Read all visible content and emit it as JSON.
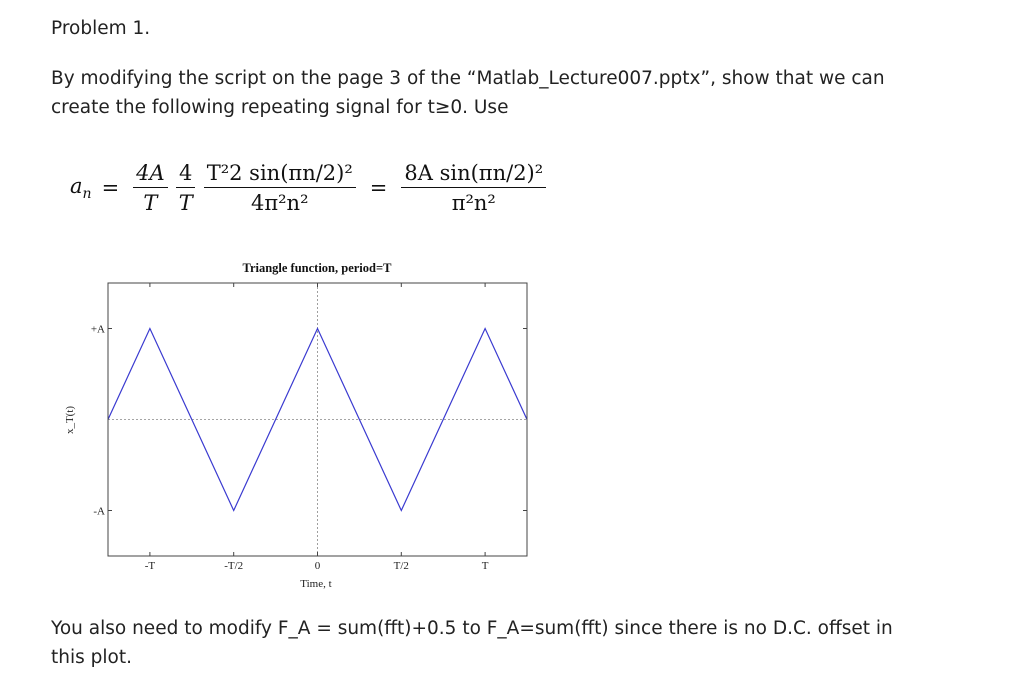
{
  "heading": "Problem 1.",
  "intro_lines": [
    "By modifying the script on the page 3 of the “Matlab_Lecture007.pptx”, show that we can",
    "create the following repeating signal for t≥0. Use"
  ],
  "equation": {
    "lhs": "a_n",
    "term1_num": "4A",
    "term1_den": "T",
    "term2_num": "4",
    "term2_den": "T",
    "term3_num": "T²2 sin(πn/2)²",
    "term3_den": "4π²n²",
    "rhs_num": "8A sin(πn/2)²",
    "rhs_den": "π²n²"
  },
  "chart_data": {
    "type": "line",
    "title": "Triangle function, period=T",
    "xlabel": "Time, t",
    "ylabel": "x_T(t)",
    "x_unit": "T",
    "y_unit": "A",
    "xlim": [
      -1.25,
      1.25
    ],
    "ylim": [
      -1.5,
      1.5
    ],
    "xticks": [
      -1,
      -0.5,
      0,
      0.5,
      1
    ],
    "xtick_labels": [
      "-T",
      "-T/2",
      "0",
      "T/2",
      "T"
    ],
    "yticks": [
      1,
      -1
    ],
    "ytick_labels": [
      "+A",
      "-A"
    ],
    "series": [
      {
        "color": "#3a3ad0",
        "x": [
          -1.25,
          -1,
          -0.5,
          0,
          0.5,
          1,
          1.25
        ],
        "y": [
          0,
          1,
          -1,
          1,
          -1,
          1,
          0
        ]
      }
    ],
    "reference_lines": {
      "x0": true,
      "y0": true,
      "style": "dotted"
    },
    "grid": false
  },
  "note_lines": [
    "You also need to modify F_A = sum(fft)+0.5 to F_A=sum(fft) since there is no D.C. offset in",
    "this plot."
  ]
}
